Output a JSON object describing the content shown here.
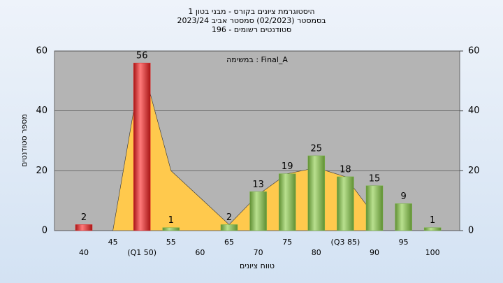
{
  "chart_data": {
    "type": "bar",
    "title": [
      "היסטוגרמת ציונים בקורס - מבני בטון 1",
      "בסמסטר  (02/2023)  סמסטר אביב 2023/24",
      "סטודנטים רשומים - 196"
    ],
    "annotation": "במשימה : Final_A",
    "x_label": "טווח ציונים",
    "y_label": "מספר סטודנטים",
    "categories": [
      "40",
      "45",
      "(Q1 50)",
      "55",
      "60",
      "65",
      "70",
      "75",
      "80",
      "(Q3 85)",
      "90",
      "95",
      "100"
    ],
    "values": [
      2,
      null,
      56,
      1,
      null,
      2,
      13,
      19,
      25,
      18,
      15,
      9,
      1
    ],
    "colors": [
      "#e02828",
      null,
      "#e02828",
      "#7ab648",
      null,
      "#7ab648",
      "#7ab648",
      "#7ab648",
      "#7ab648",
      "#7ab648",
      "#7ab648",
      "#7ab648",
      "#7ab648"
    ],
    "overlay_values": [
      null,
      0,
      56,
      20,
      11,
      2,
      12,
      19,
      21,
      18,
      5,
      null,
      null
    ],
    "overlay_color": "#ffc94d",
    "ylim": [
      0,
      60
    ],
    "yticks": [
      0,
      20,
      40,
      60
    ],
    "y2lim": [
      0,
      60
    ],
    "y2ticks": [
      0,
      20,
      40,
      60
    ],
    "grid": true
  }
}
